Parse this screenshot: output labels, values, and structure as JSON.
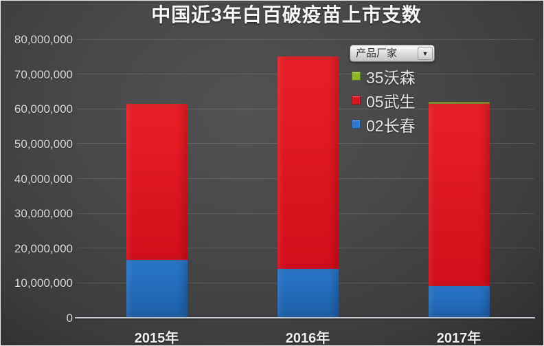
{
  "title": "中国近3年白百破疫苗上市支数",
  "legend": {
    "filter_label": "产品厂家",
    "dropdown_icon": "▼",
    "items": [
      {
        "label": "35沃森",
        "color": "#8db629"
      },
      {
        "label": "05武生",
        "color": "#d81420"
      },
      {
        "label": "02长春",
        "color": "#2e78d4"
      }
    ]
  },
  "chart_data": {
    "type": "bar",
    "stacked": true,
    "title": "中国近3年白百破疫苗上市支数",
    "categories": [
      "2015年",
      "2016年",
      "2017年"
    ],
    "series": [
      {
        "name": "02长春",
        "color": "#2268b8",
        "values": [
          16500000,
          14000000,
          9000000
        ]
      },
      {
        "name": "05武生",
        "color": "#e0131f",
        "values": [
          45000000,
          61000000,
          52500000
        ]
      },
      {
        "name": "35沃森",
        "color": "#8a9426",
        "values": [
          0,
          0,
          500000
        ]
      }
    ],
    "totals": [
      61500000,
      75000000,
      62000000
    ],
    "xlabel": "",
    "ylabel": "",
    "ylim": [
      0,
      80000000
    ],
    "ytick_interval": 10000000,
    "ytick_labels": [
      "0",
      "10,000,000",
      "20,000,000",
      "30,000,000",
      "40,000,000",
      "50,000,000",
      "60,000,000",
      "70,000,000",
      "80,000,000"
    ],
    "grid": true,
    "legend_position": "top-right",
    "legend_filter_label": "产品厂家"
  }
}
